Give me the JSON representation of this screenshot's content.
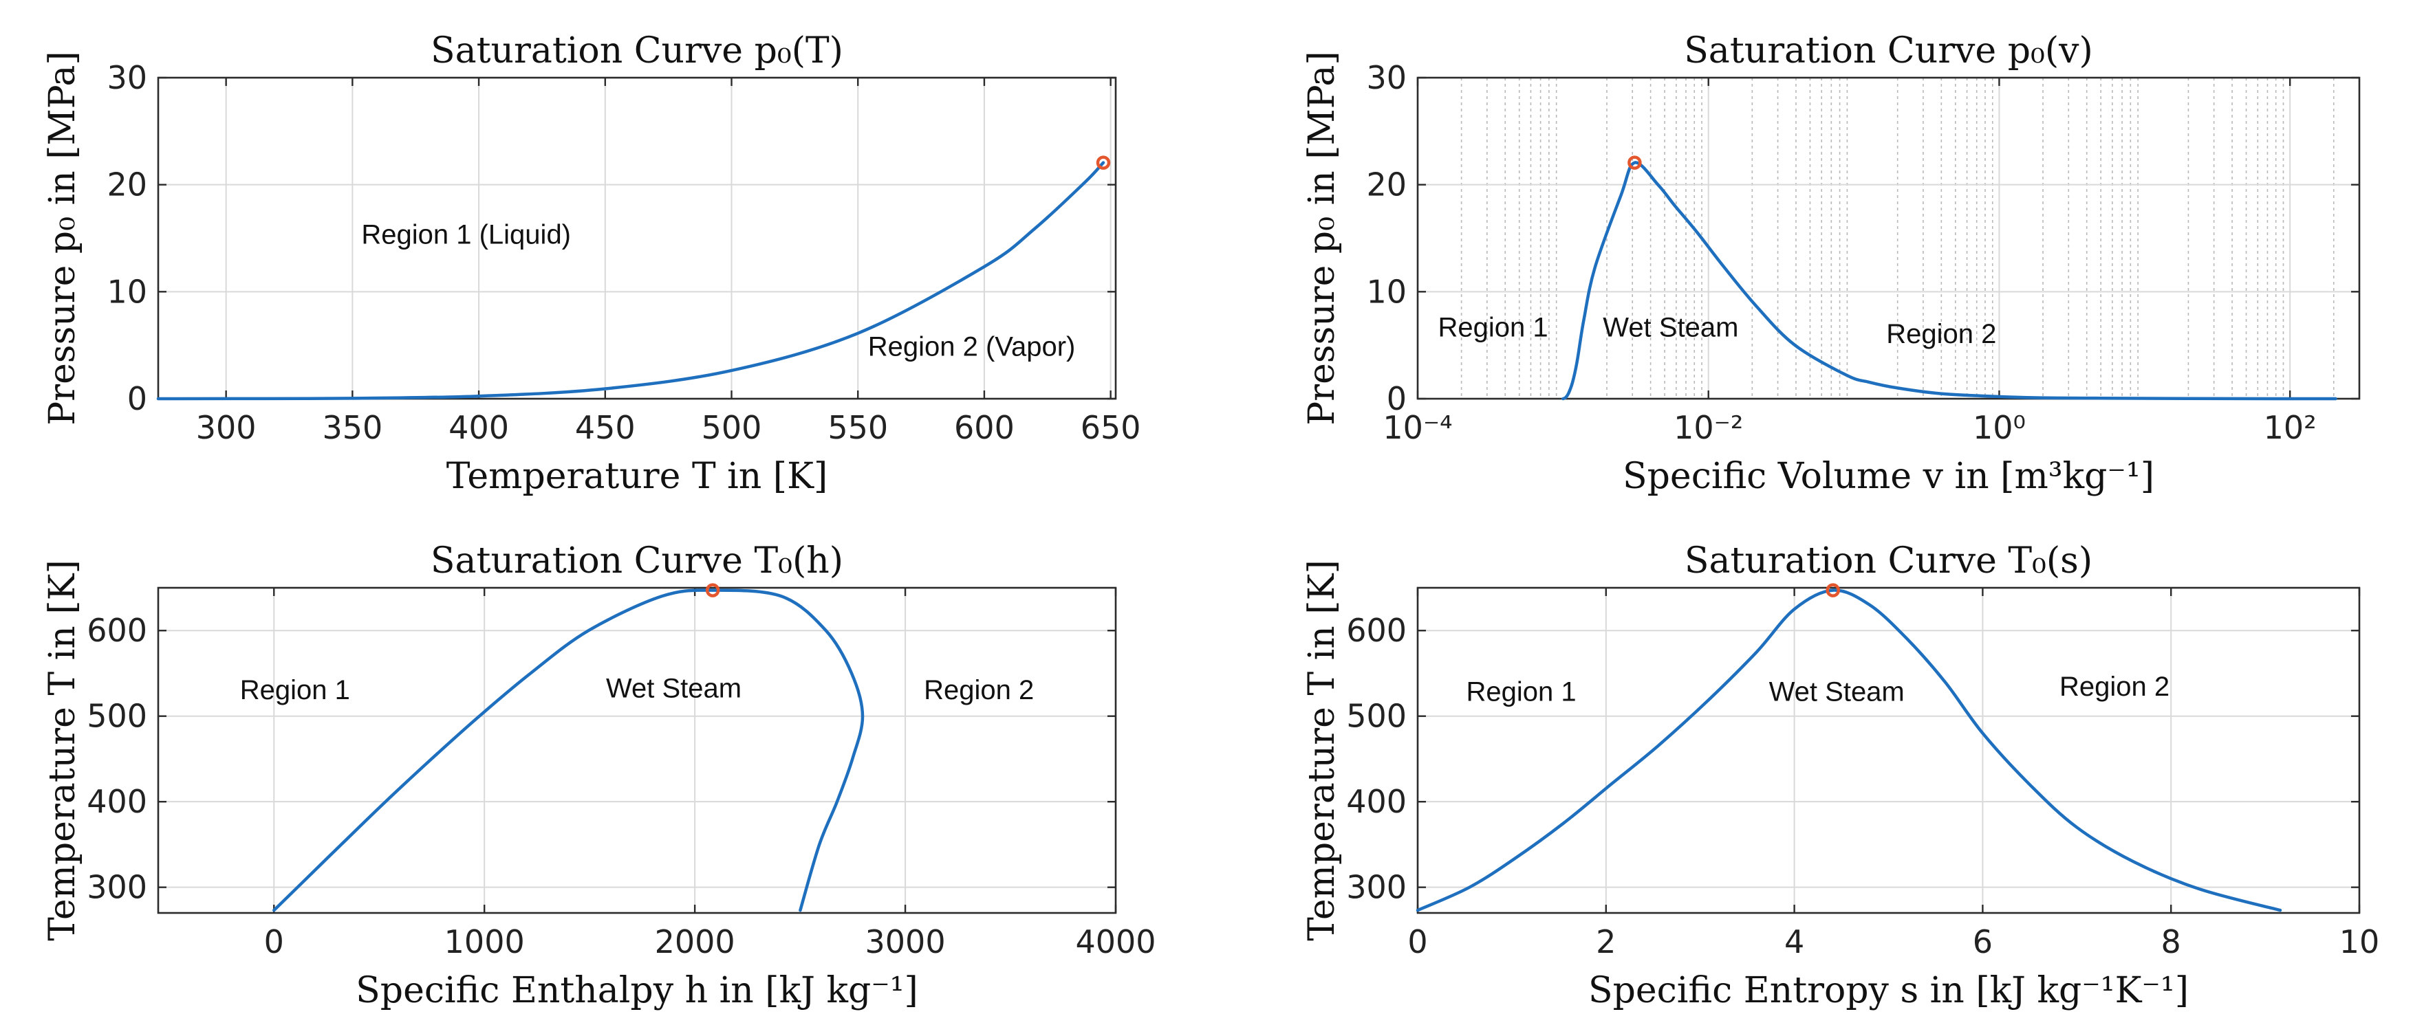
{
  "chart_data": [
    {
      "type": "line",
      "title": "Saturation Curve p₀(T)",
      "xlabel": "Temperature T in [K]",
      "ylabel": "Pressure p₀ in [MPa]",
      "xscale": "linear",
      "xlim": [
        273.15,
        652
      ],
      "ylim": [
        0,
        30
      ],
      "xticks": [
        300,
        350,
        400,
        450,
        500,
        550,
        600,
        650
      ],
      "yticks": [
        0,
        10,
        20,
        30
      ],
      "grid": true,
      "series": [
        {
          "name": "saturation curve",
          "x": [
            273.15,
            300,
            350,
            400,
            450,
            500,
            550,
            600,
            620,
            640,
            647.1
          ],
          "y": [
            0.0006,
            0.0035,
            0.0417,
            0.2456,
            0.932,
            2.639,
            6.117,
            12.34,
            15.9,
            20.27,
            22.06
          ]
        }
      ],
      "critical_point": {
        "x": 647.1,
        "y": 22.06
      },
      "annotations": [
        {
          "text": "Region 1 (Liquid)",
          "x": 395,
          "y": 14.5
        },
        {
          "text": "Region 2 (Vapor)",
          "x": 595,
          "y": 4
        }
      ]
    },
    {
      "type": "line",
      "title": "Saturation Curve p₀(v)",
      "xlabel": "Specific Volume v in [m³kg⁻¹]",
      "ylabel": "Pressure p₀ in [MPa]",
      "xscale": "log",
      "xlim": [
        0.0001,
        300
      ],
      "ylim": [
        0,
        30
      ],
      "xticks": [
        0.0001,
        0.01,
        1,
        100
      ],
      "xticklabels": [
        "10⁻⁴",
        "10⁻²",
        "10⁰",
        "10²"
      ],
      "yticks": [
        0,
        10,
        20,
        30
      ],
      "grid": true,
      "series": [
        {
          "name": "saturation curve",
          "x": [
            0.001,
            0.00104,
            0.00109,
            0.00116,
            0.00125,
            0.00139,
            0.00166,
            0.0025,
            0.003106,
            0.0045,
            0.0059,
            0.0083,
            0.0128,
            0.0215,
            0.0394,
            0.0891,
            0.1274,
            0.2,
            0.3924,
            0.8,
            1.673,
            5,
            20,
            100,
            206
          ],
          "y": [
            0.0006,
            0.1,
            0.5,
            1.5,
            3.5,
            7.4,
            12.3,
            19.0,
            22.06,
            20.0,
            18.0,
            15.6,
            12.3,
            8.6,
            5.0,
            2.2,
            1.55,
            1.0,
            0.48,
            0.25,
            0.1,
            0.05,
            0.01,
            0.002,
            0.0006
          ]
        }
      ],
      "critical_point": {
        "x": 0.003106,
        "y": 22.06
      },
      "annotations": [
        {
          "text": "Region 1",
          "x": 0.00033,
          "y": 5.8
        },
        {
          "text": "Wet Steam",
          "x": 0.0055,
          "y": 5.8
        },
        {
          "text": "Region 2",
          "x": 0.4,
          "y": 5.2
        }
      ]
    },
    {
      "type": "line",
      "title": "Saturation Curve T₀(h)",
      "xlabel": "Specific Enthalpy h in [kJ kg⁻¹]",
      "ylabel": "Temperature T in [K]",
      "xscale": "linear",
      "xlim": [
        -550,
        4000
      ],
      "ylim": [
        270,
        650
      ],
      "xticks": [
        0,
        1000,
        2000,
        3000,
        4000
      ],
      "yticks": [
        300,
        400,
        500,
        600
      ],
      "grid": true,
      "series": [
        {
          "name": "saturation curve",
          "x": [
            0,
            112,
            320,
            530,
            749,
            976,
            1219,
            1495,
            1842,
            2085,
            2412,
            2623,
            2745,
            2797,
            2749,
            2676,
            2592,
            2501
          ],
          "y": [
            273.15,
            300,
            350,
            400,
            450,
            500,
            550,
            600,
            640,
            647.1,
            640,
            600,
            550,
            500,
            450,
            400,
            350,
            273.15
          ]
        }
      ],
      "critical_point": {
        "x": 2085,
        "y": 647.1
      },
      "annotations": [
        {
          "text": "Region 1",
          "x": 100,
          "y": 520
        },
        {
          "text": "Wet Steam",
          "x": 1900,
          "y": 522
        },
        {
          "text": "Region 2",
          "x": 3350,
          "y": 520
        }
      ]
    },
    {
      "type": "line",
      "title": "Saturation Curve T₀(s)",
      "xlabel": "Specific Entropy s in [kJ kg⁻¹K⁻¹]",
      "ylabel": "Temperature T in [K]",
      "xscale": "linear",
      "xlim": [
        0,
        10
      ],
      "ylim": [
        270,
        650
      ],
      "xticks": [
        0,
        2,
        4,
        6,
        8,
        10
      ],
      "yticks": [
        300,
        400,
        500,
        600
      ],
      "grid": true,
      "series": [
        {
          "name": "saturation curve",
          "x": [
            0,
            0.55,
            1.05,
            1.55,
            2.05,
            2.55,
            3.1,
            3.6,
            4.0,
            4.41,
            4.8,
            5.2,
            5.6,
            6.0,
            6.5,
            7.0,
            7.6,
            8.3,
            9.16
          ],
          "y": [
            273.15,
            300,
            335,
            375,
            420,
            465,
            520,
            575,
            625,
            647.1,
            630,
            590,
            540,
            480,
            420,
            370,
            330,
            298,
            273.15
          ]
        }
      ],
      "critical_point": {
        "x": 4.41,
        "y": 647.1
      },
      "annotations": [
        {
          "text": "Region 1",
          "x": 1.1,
          "y": 518
        },
        {
          "text": "Wet Steam",
          "x": 4.45,
          "y": 518
        },
        {
          "text": "Region 2",
          "x": 7.4,
          "y": 524
        }
      ]
    }
  ]
}
